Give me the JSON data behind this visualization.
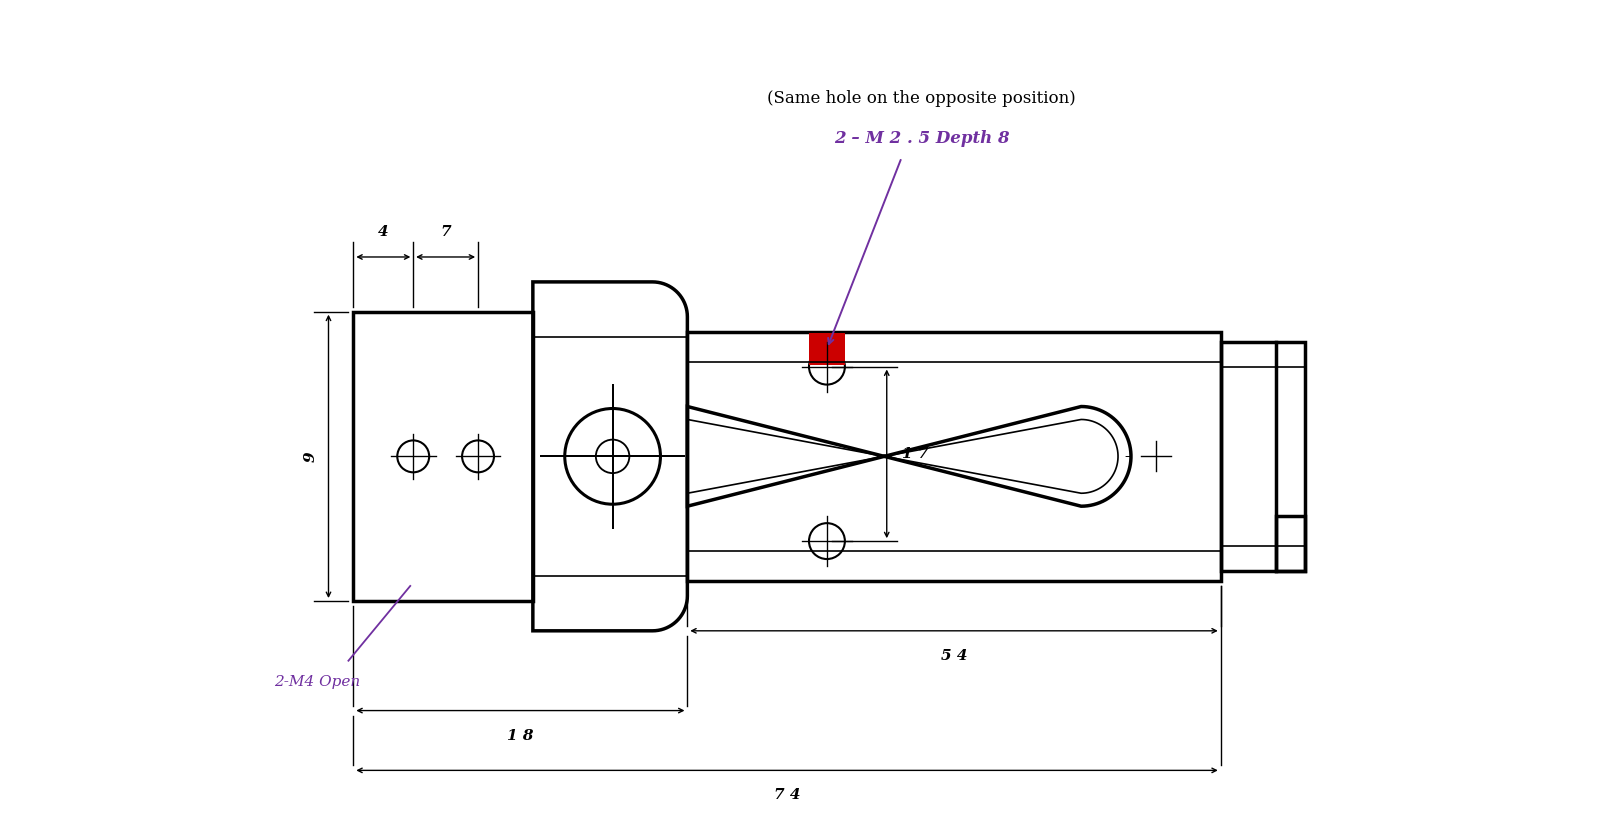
{
  "bg_color": "#ffffff",
  "line_color": "#000000",
  "dim_color": "#000000",
  "annotation_color": "#7030a0",
  "highlight_color": "#cc0000",
  "figsize": [
    16.14,
    8.23
  ],
  "dpi": 100,
  "title_note": "(Same hole on the opposite position)",
  "title_dim": "2 – M 2 . 5 Depth 8",
  "dim_4": "4",
  "dim_7": "7",
  "dim_9": "9",
  "dim_17": "1 7",
  "dim_54": "5 4",
  "dim_18": "1 8",
  "dim_74": "7 4",
  "label_2m4": "2-M4 Open",
  "lw_main": 2.5,
  "lw_thin": 1.2,
  "lw_dim": 1.0
}
